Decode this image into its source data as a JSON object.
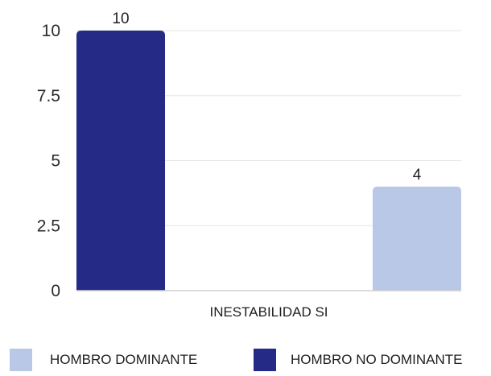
{
  "chart_data": {
    "type": "bar",
    "categories": [
      "INESTABILIDAD SI"
    ],
    "series": [
      {
        "name": "HOMBRO NO DOMINANTE",
        "values": [
          10
        ],
        "color": "#252a86"
      },
      {
        "name": "HOMBRO DOMINANTE",
        "values": [
          4
        ],
        "color": "#b8c8e6"
      }
    ],
    "ylim": [
      0,
      10
    ],
    "yticks": [
      "0",
      "2.5",
      "5",
      "7.5",
      "10"
    ],
    "data_labels": [
      "10",
      "4"
    ],
    "grid": true,
    "legend_position": "bottom"
  },
  "legend": {
    "items": [
      {
        "label": "HOMBRO DOMINANTE",
        "color": "#b8c8e6"
      },
      {
        "label": "HOMBRO NO DOMINANTE",
        "color": "#252a86"
      }
    ]
  }
}
